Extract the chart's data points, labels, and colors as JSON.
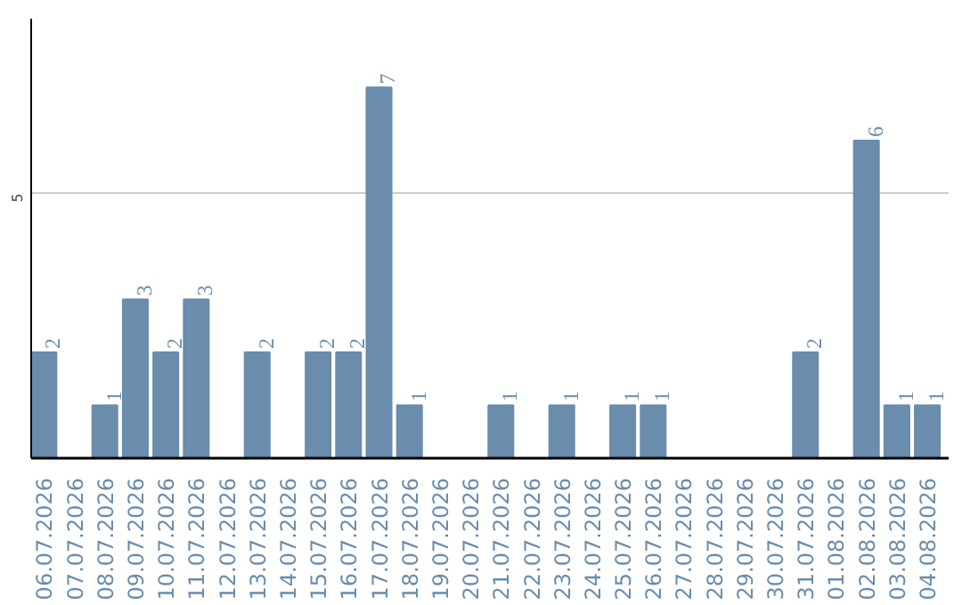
{
  "chart_data": {
    "type": "bar",
    "categories": [
      "06.07.2026",
      "07.07.2026",
      "08.07.2026",
      "09.07.2026",
      "10.07.2026",
      "11.07.2026",
      "12.07.2026",
      "13.07.2026",
      "14.07.2026",
      "15.07.2026",
      "16.07.2026",
      "17.07.2026",
      "18.07.2026",
      "19.07.2026",
      "20.07.2026",
      "21.07.2026",
      "22.07.2026",
      "23.07.2026",
      "24.07.2026",
      "25.07.2026",
      "26.07.2026",
      "27.07.2026",
      "28.07.2026",
      "29.07.2026",
      "30.07.2026",
      "31.07.2026",
      "01.08.2026",
      "02.08.2026",
      "03.08.2026",
      "04.08.2026"
    ],
    "values": [
      2,
      0,
      1,
      3,
      2,
      3,
      0,
      2,
      0,
      2,
      2,
      7,
      1,
      0,
      0,
      1,
      0,
      1,
      0,
      1,
      1,
      0,
      0,
      0,
      0,
      2,
      0,
      6,
      1,
      1
    ],
    "value_labels": [
      "2",
      null,
      "1",
      "3",
      "2",
      "3",
      null,
      "2",
      null,
      "2",
      "2",
      "7",
      "1",
      null,
      null,
      "1",
      null,
      "1",
      null,
      "1",
      "1",
      null,
      null,
      null,
      null,
      "2",
      null,
      "6",
      "1",
      "1"
    ],
    "color": "#6a8cad",
    "ylim": [
      0,
      8.3
    ],
    "yticks": [
      5
    ],
    "grid": "y"
  }
}
